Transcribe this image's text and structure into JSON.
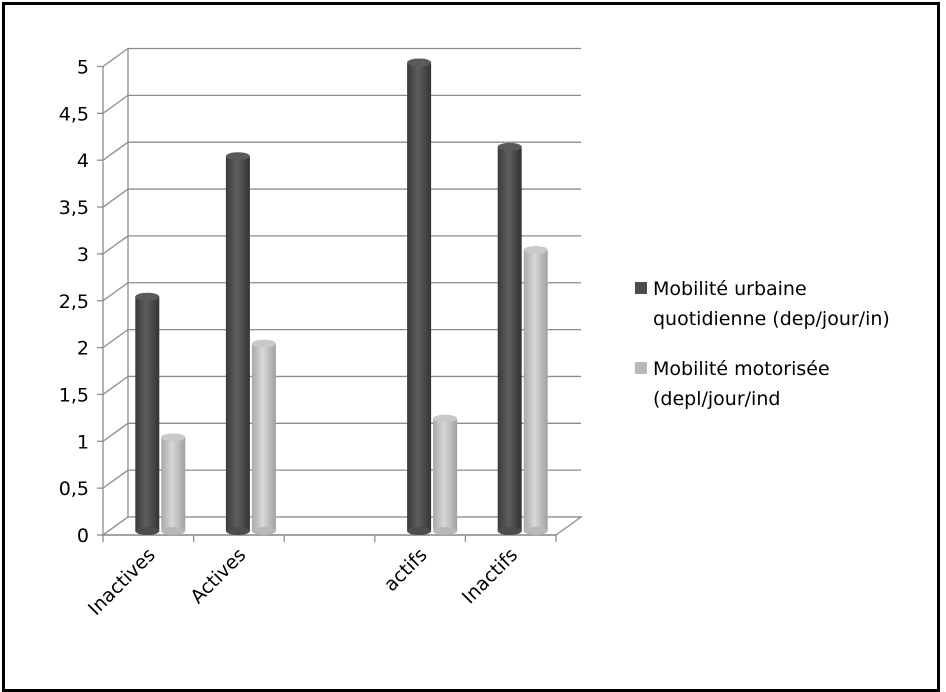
{
  "chart_data": {
    "type": "bar",
    "categories": [
      "Inactives",
      "Actives",
      "",
      "actifs",
      "Inactifs"
    ],
    "series": [
      {
        "name": "Mobilité urbaine quotidienne (dep/jour/in)",
        "color": "#4d4d4d",
        "values": [
          2.5,
          4.0,
          null,
          5.0,
          4.1
        ]
      },
      {
        "name": "Mobilité motorisée (depl/jour/ind",
        "color": "#b8b8b8",
        "values": [
          1.0,
          2.0,
          null,
          1.2,
          3.0
        ]
      }
    ],
    "yticks": [
      "0",
      "0,5",
      "1",
      "1,5",
      "2",
      "2,5",
      "3",
      "3,5",
      "4",
      "4,5",
      "5"
    ],
    "ylim": [
      0,
      5
    ],
    "grid": true,
    "legend_position": "right",
    "legend": [
      {
        "lines": [
          "Mobilité urbaine",
          "quotidienne (dep/jour/in)"
        ],
        "color": "#4d4d4d"
      },
      {
        "lines": [
          "Mobilité motorisée",
          "(depl/jour/ind"
        ],
        "color": "#b8b8b8"
      }
    ]
  }
}
